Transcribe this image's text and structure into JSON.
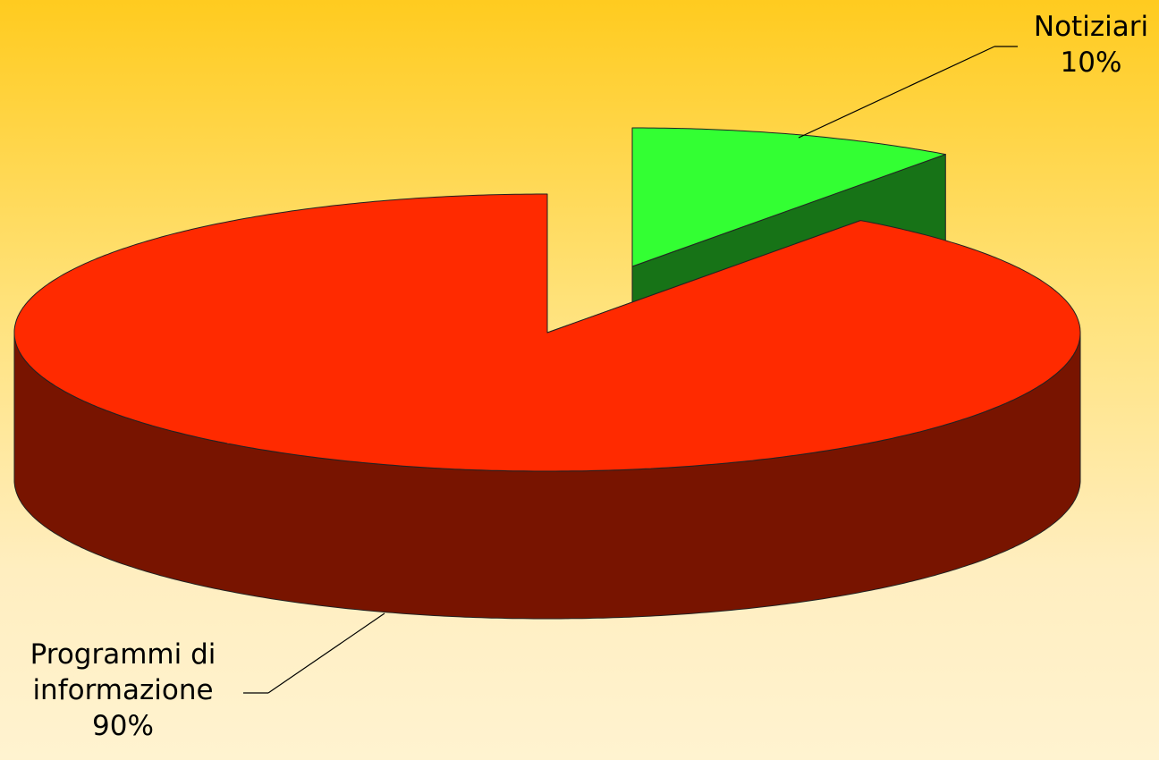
{
  "chart_data": {
    "type": "pie3d",
    "categories": [
      "Notiziari",
      "Programmi di informazione"
    ],
    "values": [
      10,
      90
    ],
    "value_labels": [
      "10%",
      "90%"
    ],
    "colors": [
      "#33ff33",
      "#ff2a00"
    ]
  }
}
